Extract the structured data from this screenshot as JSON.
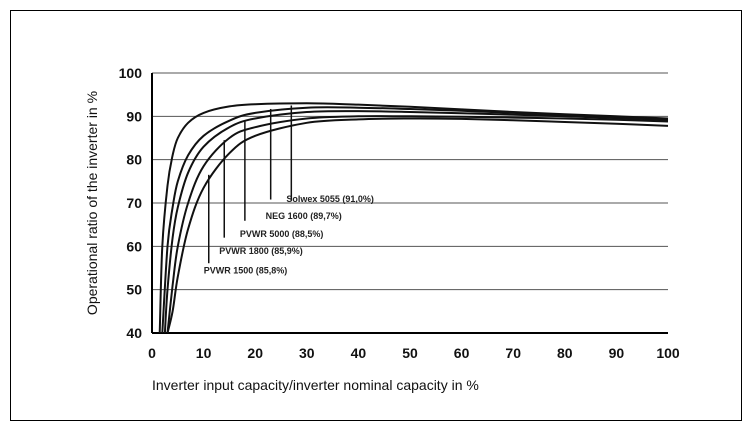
{
  "chart_data": {
    "type": "line",
    "title": "",
    "xlabel": "Inverter input capacity/inverter nominal capacity in %",
    "ylabel": "Operational ratio of the inverter in %",
    "xlim": [
      0,
      100
    ],
    "ylim": [
      40,
      100
    ],
    "x_ticks": [
      "0",
      "10",
      "20",
      "30",
      "40",
      "50",
      "60",
      "70",
      "80",
      "90",
      "100"
    ],
    "y_ticks": [
      "40",
      "50",
      "60",
      "70",
      "80",
      "90",
      "100"
    ],
    "grid": "horizontal",
    "legend": "none",
    "series": [
      {
        "name": "Solwex 5055 (91,0%)",
        "x": [
          1.5,
          2,
          3,
          4,
          5,
          7,
          10,
          15,
          20,
          30,
          40,
          50,
          60,
          70,
          80,
          90,
          100
        ],
        "y": [
          40,
          60,
          74,
          81,
          85,
          88.5,
          90.8,
          92.3,
          92.8,
          93,
          92.7,
          92.2,
          91.6,
          91,
          90.5,
          90,
          89.5
        ]
      },
      {
        "name": "NEG 1600 (89,7%)",
        "x": [
          2,
          3,
          4,
          5,
          7,
          10,
          15,
          20,
          30,
          40,
          50,
          60,
          70,
          80,
          90,
          100
        ],
        "y": [
          40,
          60,
          69,
          75,
          81,
          85.5,
          89,
          90.8,
          92,
          92,
          91.7,
          91.3,
          90.8,
          90.3,
          89.8,
          89.2
        ]
      },
      {
        "name": "PVWR 5000 (88,5%)",
        "x": [
          2.5,
          3,
          4,
          5,
          7,
          10,
          15,
          20,
          30,
          40,
          50,
          60,
          70,
          80,
          90,
          100
        ],
        "y": [
          40,
          50,
          62,
          69,
          77,
          83,
          87.5,
          89.5,
          91,
          91.2,
          91,
          90.7,
          90.4,
          90,
          89.6,
          89.2
        ]
      },
      {
        "name": "PVWR 1800 (85,9%)",
        "x": [
          3,
          4,
          5,
          7,
          10,
          15,
          20,
          30,
          40,
          50,
          60,
          70,
          80,
          90,
          100
        ],
        "y": [
          40,
          51,
          60,
          70,
          78.5,
          85,
          87.5,
          89.5,
          90,
          90,
          89.9,
          89.7,
          89.5,
          89.2,
          88.8
        ]
      },
      {
        "name": "PVWR 1500 (85,8%)",
        "x": [
          3,
          4,
          5,
          7,
          10,
          15,
          20,
          30,
          40,
          50,
          60,
          70,
          80,
          90,
          100
        ],
        "y": [
          40,
          45,
          53,
          64,
          73.5,
          81.5,
          85.5,
          88.5,
          89.3,
          89.5,
          89.4,
          89.1,
          88.7,
          88.3,
          87.8
        ]
      }
    ],
    "annotations": [
      {
        "label": "Solwex 5055 (91,0%)",
        "x_marker": 27,
        "marker_top": 92.5,
        "marker_bottom": 70.5,
        "label_y": 70.2
      },
      {
        "label": "NEG 1600 (89,7%)",
        "x_marker": 23,
        "marker_top": 91.7,
        "marker_bottom": 70.8,
        "label_y": 66.3
      },
      {
        "label": "PVWR 5000 (88,5%)",
        "x_marker": 18,
        "marker_top": 89.0,
        "marker_bottom": 65.9,
        "label_y": 62.1
      },
      {
        "label": "PVWR 1800 (85,9%)",
        "x_marker": 14,
        "marker_top": 84.5,
        "marker_bottom": 62.0,
        "label_y": 58.2
      },
      {
        "label": "PVWR 1500 (85,8%)",
        "x_marker": 11,
        "marker_top": 76.5,
        "marker_bottom": 56.1,
        "label_y": 53.7
      }
    ]
  }
}
